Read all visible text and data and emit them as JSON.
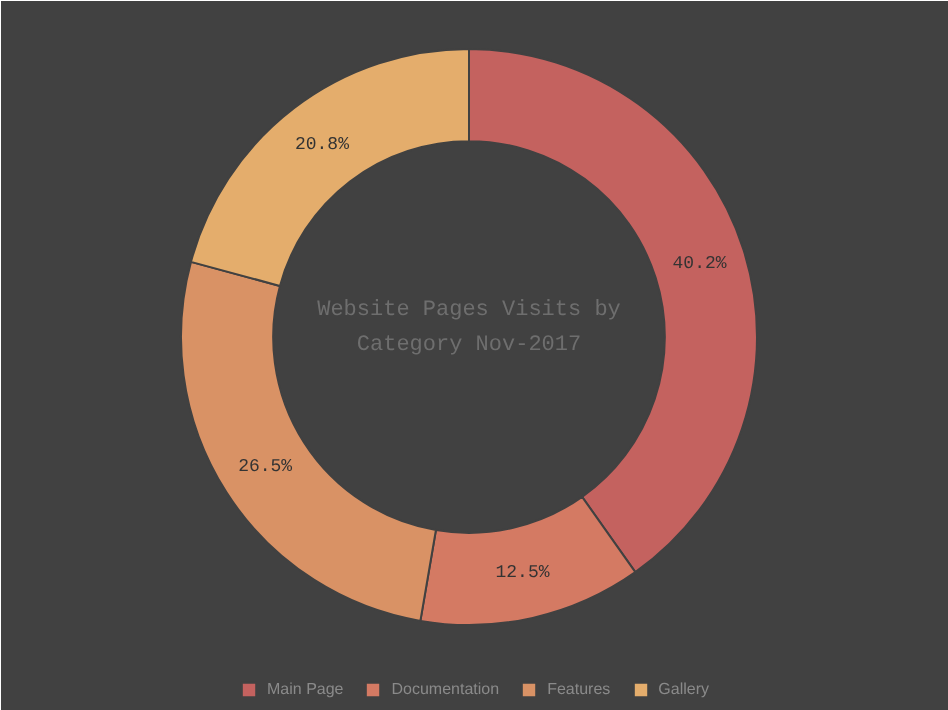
{
  "chart_data": {
    "type": "donut",
    "title": "Website Pages Visits by Category Nov-2017",
    "categories": [
      "Main Page",
      "Documentation",
      "Features",
      "Gallery"
    ],
    "values": [
      40.2,
      12.5,
      26.5,
      20.8
    ],
    "colors": [
      "#c4625f",
      "#d47a63",
      "#d99265",
      "#e4ad6c"
    ],
    "value_labels": [
      "40.2%",
      "12.5%",
      "26.5%",
      "20.8%"
    ],
    "legend": "bottom"
  }
}
